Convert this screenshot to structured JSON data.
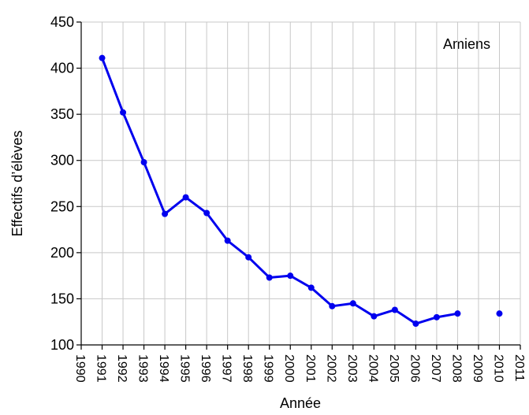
{
  "chart_data": {
    "type": "line",
    "annotation": "Amiens",
    "xlabel": "Année",
    "ylabel": "Effectifs d’élèves",
    "x": [
      1991,
      1992,
      1993,
      1994,
      1995,
      1996,
      1997,
      1998,
      1999,
      2000,
      2001,
      2002,
      2003,
      2004,
      2005,
      2006,
      2007,
      2008,
      2009,
      2010
    ],
    "series": [
      {
        "color": "#0000ee",
        "values": [
          411,
          352,
          298,
          242,
          260,
          243,
          213,
          195,
          173,
          175,
          162,
          142,
          145,
          131,
          138,
          123,
          130,
          134,
          null,
          134
        ]
      }
    ],
    "xlim": [
      1990,
      2011
    ],
    "xticks": [
      1990,
      1991,
      1992,
      1993,
      1994,
      1995,
      1996,
      1997,
      1998,
      1999,
      2000,
      2001,
      2002,
      2003,
      2004,
      2005,
      2006,
      2007,
      2008,
      2009,
      2010,
      2011
    ],
    "ylim": [
      100,
      450
    ],
    "yticks": [
      100,
      150,
      200,
      250,
      300,
      350,
      400,
      450
    ],
    "grid": true
  }
}
